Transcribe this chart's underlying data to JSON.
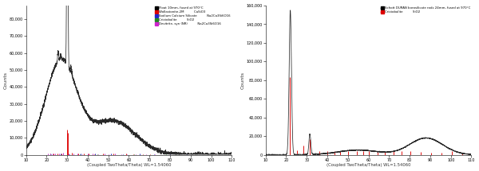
{
  "fig_width": 6.0,
  "fig_height": 2.15,
  "dpi": 100,
  "background_color": "#ffffff",
  "plot_bg_color": "#f8f8f8",
  "left_plot": {
    "xlabel": "(Coupled TwoTheta/Theta) WL=1.54060",
    "ylabel": "Counts",
    "xmin": 10,
    "xmax": 110,
    "ymin": 0,
    "ymax": 88000,
    "yticks": [
      0,
      10000,
      20000,
      30000,
      40000,
      50000,
      60000,
      70000,
      80000
    ],
    "xticks": [
      10,
      20,
      30,
      40,
      50,
      60,
      70,
      80,
      90,
      100,
      110
    ],
    "main_curve_color": "#2a2a2a",
    "legend_entries": [
      {
        "label": "Float 10mm, fused at 970°C",
        "color": "#000000",
        "formula": ""
      },
      {
        "label": "Wollastonite-2M",
        "color": "#dd0000",
        "formula": "CaSiO3"
      },
      {
        "label": "Sodium Calcium Silicate",
        "color": "#2222cc",
        "formula": "Na2Ca3Si6O16"
      },
      {
        "label": "Cristobalite",
        "color": "#228822",
        "formula": "SiO2"
      },
      {
        "label": "Devitrite, syn (NR)",
        "color": "#cc22cc",
        "formula": "Na2Ca3Si6O16"
      }
    ],
    "ref_wollastonite": {
      "color": "#dd0000",
      "positions": [
        23.2,
        25.5,
        27.1,
        29.85,
        30.35,
        32.1,
        35.4,
        38.2,
        40.6,
        43.2,
        47.5,
        52.5,
        58.6,
        62.3,
        67.0,
        70.5
      ],
      "heights": [
        800,
        600,
        700,
        15000,
        13000,
        1200,
        800,
        900,
        600,
        500,
        700,
        800,
        600,
        500,
        400,
        400
      ]
    },
    "ref_na_ca_silicate": {
      "color": "#2222cc",
      "positions": [
        22.2,
        26.7,
        31.2,
        36.7,
        43.7,
        51.2,
        57.2,
        65.2,
        72.2,
        80.2,
        88.0
      ],
      "heights": [
        500,
        600,
        500,
        600,
        700,
        600,
        500,
        600,
        500,
        500,
        400
      ]
    },
    "ref_cristobalite": {
      "color": "#228822",
      "positions": [
        21.7,
        36.2,
        44.7,
        62.7,
        78.2
      ],
      "heights": [
        600,
        500,
        500,
        500,
        500
      ]
    },
    "ref_devitrite": {
      "color": "#cc22cc",
      "positions": [
        20.6,
        21.8,
        22.8,
        24.2,
        26.2,
        28.2,
        30.8,
        33.2,
        35.2,
        37.2,
        40.2,
        42.2,
        45.2,
        48.2,
        50.2,
        53.2,
        56.2,
        59.2,
        63.2,
        68.5,
        72.5
      ],
      "heights": [
        700,
        800,
        900,
        600,
        700,
        1100,
        900,
        700,
        600,
        500,
        600,
        700,
        500,
        600,
        500,
        600,
        500,
        500,
        500,
        400,
        400
      ]
    }
  },
  "right_plot": {
    "xlabel": "(Coupled TwoTheta/Theta) WL=1.54060",
    "ylabel": "Counts",
    "xmin": 10,
    "xmax": 110,
    "ymin": 0,
    "ymax": 160000,
    "yticks": [
      0,
      20000,
      40000,
      60000,
      80000,
      100000,
      120000,
      140000,
      160000
    ],
    "xticks": [
      10,
      20,
      30,
      40,
      50,
      60,
      70,
      80,
      90,
      100,
      110
    ],
    "main_curve_color": "#2a2a2a",
    "legend_entries": [
      {
        "label": "Schott DURAN borosilicate rods 24mm, fused at 970°C",
        "color": "#000000",
        "formula": ""
      },
      {
        "label": "Cristobalite",
        "color": "#dd0000",
        "formula": "SiO2"
      }
    ],
    "ref_cristobalite": {
      "color": "#dd0000",
      "positions": [
        21.8,
        25.2,
        28.4,
        31.5,
        36.1,
        40.0,
        43.4,
        46.1,
        50.2,
        54.5,
        57.5,
        60.2,
        64.5,
        68.1,
        72.3,
        76.2,
        80.5,
        85.5,
        90.5,
        95.5,
        100.5,
        105.5
      ],
      "heights": [
        83000,
        5000,
        10000,
        17000,
        4000,
        3500,
        4000,
        3500,
        3500,
        4000,
        3500,
        3500,
        4000,
        3500,
        3500,
        3500,
        4000,
        3000,
        2500,
        2500,
        4000,
        2500
      ]
    }
  }
}
